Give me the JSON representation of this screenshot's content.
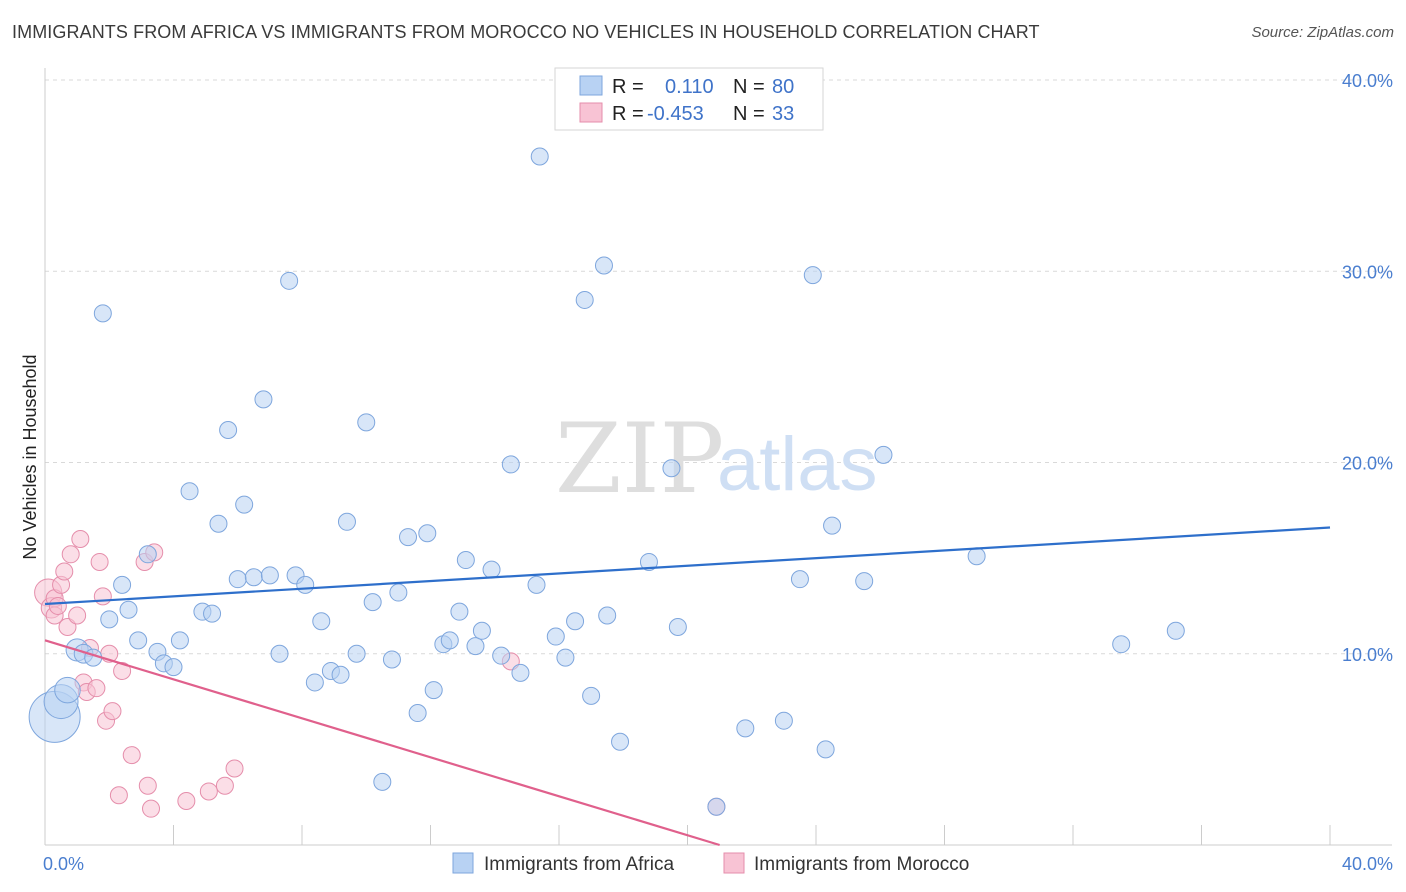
{
  "title": "IMMIGRANTS FROM AFRICA VS IMMIGRANTS FROM MOROCCO NO VEHICLES IN HOUSEHOLD CORRELATION CHART",
  "source": "Source: ZipAtlas.com",
  "watermark": {
    "zip": "ZIP",
    "atlas": "atlas"
  },
  "colors": {
    "africa_fill": "#b8d2f3",
    "africa_stroke": "#7ea6dd",
    "africa_line": "#2e6fcb",
    "morocco_fill": "#f8c3d4",
    "morocco_stroke": "#e58eab",
    "morocco_line": "#e0608c",
    "grid": "#d9d9d9",
    "tick_text": "#4a7ecf"
  },
  "legend": {
    "africa": {
      "r_label": "R =",
      "r_value": "0.110",
      "n_label": "N =",
      "n_value": "80"
    },
    "morocco": {
      "r_label": "R =",
      "r_value": "-0.453",
      "n_label": "N =",
      "n_value": "33"
    }
  },
  "chart_data": {
    "type": "scatter",
    "title": "IMMIGRANTS FROM AFRICA VS IMMIGRANTS FROM MOROCCO NO VEHICLES IN HOUSEHOLD CORRELATION CHART",
    "ylabel": "No Vehicles in Household",
    "xlabel": "",
    "xlim": [
      0,
      40
    ],
    "ylim": [
      0,
      40
    ],
    "x_tick_labels": [
      "0.0%",
      "40.0%"
    ],
    "y_tick_labels": [
      "10.0%",
      "20.0%",
      "30.0%",
      "40.0%"
    ],
    "y_ticks": [
      10,
      20,
      30,
      40
    ],
    "series": [
      {
        "name": "Immigrants from Africa",
        "trend": {
          "x": [
            0,
            40
          ],
          "y": [
            12.6,
            16.6
          ]
        },
        "points": [
          {
            "x": 0.3,
            "y": 6.7,
            "s": 3
          },
          {
            "x": 0.5,
            "y": 7.5,
            "s": 2
          },
          {
            "x": 0.7,
            "y": 8.1,
            "s": 1.5
          },
          {
            "x": 1.0,
            "y": 10.2,
            "s": 1.3
          },
          {
            "x": 1.2,
            "y": 10.0,
            "s": 1.1
          },
          {
            "x": 1.5,
            "y": 9.8,
            "s": 1
          },
          {
            "x": 1.8,
            "y": 27.8,
            "s": 1
          },
          {
            "x": 2.0,
            "y": 11.8,
            "s": 1
          },
          {
            "x": 2.4,
            "y": 13.6,
            "s": 1
          },
          {
            "x": 2.6,
            "y": 12.3,
            "s": 1
          },
          {
            "x": 2.9,
            "y": 10.7,
            "s": 1
          },
          {
            "x": 3.2,
            "y": 15.2,
            "s": 1
          },
          {
            "x": 3.5,
            "y": 10.1,
            "s": 1
          },
          {
            "x": 3.7,
            "y": 9.5,
            "s": 1
          },
          {
            "x": 4.0,
            "y": 9.3,
            "s": 1
          },
          {
            "x": 4.2,
            "y": 10.7,
            "s": 1
          },
          {
            "x": 4.5,
            "y": 18.5,
            "s": 1
          },
          {
            "x": 4.9,
            "y": 12.2,
            "s": 1
          },
          {
            "x": 5.2,
            "y": 12.1,
            "s": 1
          },
          {
            "x": 5.4,
            "y": 16.8,
            "s": 1
          },
          {
            "x": 5.7,
            "y": 21.7,
            "s": 1
          },
          {
            "x": 6.0,
            "y": 13.9,
            "s": 1
          },
          {
            "x": 6.2,
            "y": 17.8,
            "s": 1
          },
          {
            "x": 6.5,
            "y": 14.0,
            "s": 1
          },
          {
            "x": 6.8,
            "y": 23.3,
            "s": 1
          },
          {
            "x": 7.0,
            "y": 14.1,
            "s": 1
          },
          {
            "x": 7.3,
            "y": 10.0,
            "s": 1
          },
          {
            "x": 7.6,
            "y": 29.5,
            "s": 1
          },
          {
            "x": 7.8,
            "y": 14.1,
            "s": 1
          },
          {
            "x": 8.1,
            "y": 13.6,
            "s": 1
          },
          {
            "x": 8.4,
            "y": 8.5,
            "s": 1
          },
          {
            "x": 8.6,
            "y": 11.7,
            "s": 1
          },
          {
            "x": 8.9,
            "y": 9.1,
            "s": 1
          },
          {
            "x": 9.2,
            "y": 8.9,
            "s": 1
          },
          {
            "x": 9.4,
            "y": 16.9,
            "s": 1
          },
          {
            "x": 9.7,
            "y": 10.0,
            "s": 1
          },
          {
            "x": 10.0,
            "y": 22.1,
            "s": 1
          },
          {
            "x": 10.2,
            "y": 12.7,
            "s": 1
          },
          {
            "x": 10.5,
            "y": 3.3,
            "s": 1
          },
          {
            "x": 10.8,
            "y": 9.7,
            "s": 1
          },
          {
            "x": 11.0,
            "y": 13.2,
            "s": 1
          },
          {
            "x": 11.3,
            "y": 16.1,
            "s": 1
          },
          {
            "x": 11.6,
            "y": 6.9,
            "s": 1
          },
          {
            "x": 11.9,
            "y": 16.3,
            "s": 1
          },
          {
            "x": 12.1,
            "y": 8.1,
            "s": 1
          },
          {
            "x": 12.4,
            "y": 10.5,
            "s": 1
          },
          {
            "x": 12.6,
            "y": 10.7,
            "s": 1
          },
          {
            "x": 12.9,
            "y": 12.2,
            "s": 1
          },
          {
            "x": 13.1,
            "y": 14.9,
            "s": 1
          },
          {
            "x": 13.4,
            "y": 10.4,
            "s": 1
          },
          {
            "x": 13.6,
            "y": 11.2,
            "s": 1
          },
          {
            "x": 13.9,
            "y": 14.4,
            "s": 1
          },
          {
            "x": 14.2,
            "y": 9.9,
            "s": 1
          },
          {
            "x": 14.5,
            "y": 19.9,
            "s": 1
          },
          {
            "x": 14.8,
            "y": 9.0,
            "s": 1
          },
          {
            "x": 15.3,
            "y": 13.6,
            "s": 1
          },
          {
            "x": 15.4,
            "y": 36.0,
            "s": 1
          },
          {
            "x": 15.9,
            "y": 10.9,
            "s": 1
          },
          {
            "x": 16.2,
            "y": 9.8,
            "s": 1
          },
          {
            "x": 16.5,
            "y": 11.7,
            "s": 1
          },
          {
            "x": 16.8,
            "y": 28.5,
            "s": 1
          },
          {
            "x": 17.0,
            "y": 7.8,
            "s": 1
          },
          {
            "x": 17.4,
            "y": 30.3,
            "s": 1
          },
          {
            "x": 17.5,
            "y": 12.0,
            "s": 1
          },
          {
            "x": 17.9,
            "y": 5.4,
            "s": 1
          },
          {
            "x": 18.8,
            "y": 14.8,
            "s": 1
          },
          {
            "x": 19.5,
            "y": 19.7,
            "s": 1
          },
          {
            "x": 19.7,
            "y": 11.4,
            "s": 1
          },
          {
            "x": 20.9,
            "y": 2.0,
            "s": 1
          },
          {
            "x": 21.8,
            "y": 6.1,
            "s": 1
          },
          {
            "x": 23.0,
            "y": 6.5,
            "s": 1
          },
          {
            "x": 23.5,
            "y": 13.9,
            "s": 1
          },
          {
            "x": 23.9,
            "y": 29.8,
            "s": 1
          },
          {
            "x": 24.3,
            "y": 5.0,
            "s": 1
          },
          {
            "x": 24.5,
            "y": 16.7,
            "s": 1
          },
          {
            "x": 25.5,
            "y": 13.8,
            "s": 1
          },
          {
            "x": 26.1,
            "y": 20.4,
            "s": 1
          },
          {
            "x": 29.0,
            "y": 15.1,
            "s": 1
          },
          {
            "x": 33.5,
            "y": 10.5,
            "s": 1
          },
          {
            "x": 35.2,
            "y": 11.2,
            "s": 1
          }
        ]
      },
      {
        "name": "Immigrants from Morocco",
        "trend": {
          "x": [
            0,
            21
          ],
          "y": [
            10.7,
            0
          ]
        },
        "points": [
          {
            "x": 0.1,
            "y": 13.2,
            "s": 1.6
          },
          {
            "x": 0.2,
            "y": 12.4,
            "s": 1.2
          },
          {
            "x": 0.3,
            "y": 12.0,
            "s": 1
          },
          {
            "x": 0.3,
            "y": 12.9,
            "s": 1
          },
          {
            "x": 0.4,
            "y": 12.5,
            "s": 1
          },
          {
            "x": 0.5,
            "y": 13.6,
            "s": 1
          },
          {
            "x": 0.6,
            "y": 14.3,
            "s": 1
          },
          {
            "x": 0.7,
            "y": 11.4,
            "s": 1
          },
          {
            "x": 0.8,
            "y": 15.2,
            "s": 1
          },
          {
            "x": 1.0,
            "y": 12.0,
            "s": 1
          },
          {
            "x": 1.1,
            "y": 16.0,
            "s": 1
          },
          {
            "x": 1.2,
            "y": 8.5,
            "s": 1
          },
          {
            "x": 1.3,
            "y": 8.0,
            "s": 1
          },
          {
            "x": 1.4,
            "y": 10.3,
            "s": 1
          },
          {
            "x": 1.6,
            "y": 8.2,
            "s": 1
          },
          {
            "x": 1.7,
            "y": 14.8,
            "s": 1
          },
          {
            "x": 1.8,
            "y": 13.0,
            "s": 1
          },
          {
            "x": 1.9,
            "y": 6.5,
            "s": 1
          },
          {
            "x": 2.0,
            "y": 10.0,
            "s": 1
          },
          {
            "x": 2.1,
            "y": 7.0,
            "s": 1
          },
          {
            "x": 2.3,
            "y": 2.6,
            "s": 1
          },
          {
            "x": 2.4,
            "y": 9.1,
            "s": 1
          },
          {
            "x": 2.7,
            "y": 4.7,
            "s": 1
          },
          {
            "x": 3.1,
            "y": 14.8,
            "s": 1
          },
          {
            "x": 3.2,
            "y": 3.1,
            "s": 1
          },
          {
            "x": 3.3,
            "y": 1.9,
            "s": 1
          },
          {
            "x": 3.4,
            "y": 15.3,
            "s": 1
          },
          {
            "x": 4.4,
            "y": 2.3,
            "s": 1
          },
          {
            "x": 5.1,
            "y": 2.8,
            "s": 1
          },
          {
            "x": 5.6,
            "y": 3.1,
            "s": 1
          },
          {
            "x": 5.9,
            "y": 4.0,
            "s": 1
          },
          {
            "x": 14.5,
            "y": 9.6,
            "s": 1
          },
          {
            "x": 20.9,
            "y": 2.0,
            "s": 1
          }
        ]
      }
    ]
  },
  "bottom_legend": {
    "africa": "Immigrants from Africa",
    "morocco": "Immigrants from Morocco"
  }
}
